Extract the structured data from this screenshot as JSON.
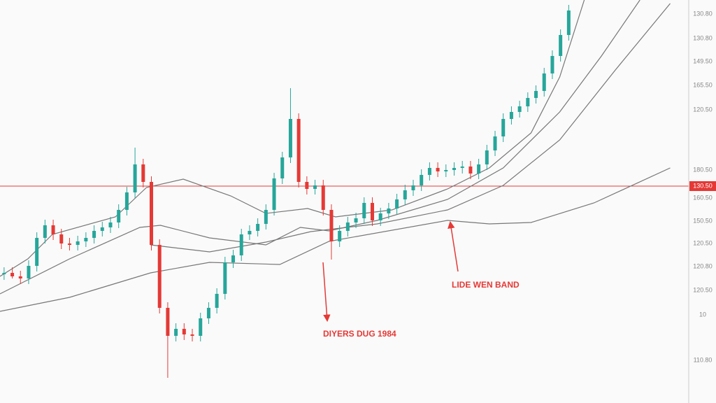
{
  "chart_data": {
    "type": "candlestick",
    "up_color": "#26a69a",
    "down_color": "#e53935",
    "xlim": [
      -0.5,
      87
    ],
    "ylim": [
      0,
      576
    ],
    "open": [
      184,
      186,
      181,
      178,
      196,
      236,
      254,
      241,
      228,
      226,
      231,
      236,
      246,
      251,
      258,
      276,
      301,
      341,
      316,
      226,
      136,
      96,
      106,
      98,
      96,
      121,
      136,
      156,
      201,
      211,
      241,
      246,
      256,
      276,
      321,
      351,
      406,
      316,
      306,
      311,
      276,
      231,
      246,
      258,
      264,
      286,
      261,
      271,
      278,
      291,
      304,
      311,
      326,
      336,
      331,
      333,
      336,
      338,
      328,
      341,
      361,
      381,
      406,
      416,
      424,
      436,
      446,
      471,
      496,
      526
    ],
    "high": [
      194,
      194,
      189,
      204,
      244,
      262,
      262,
      249,
      236,
      239,
      244,
      254,
      259,
      266,
      284,
      309,
      365,
      349,
      324,
      234,
      144,
      114,
      114,
      106,
      129,
      144,
      164,
      209,
      219,
      249,
      254,
      264,
      284,
      329,
      359,
      450,
      414,
      324,
      319,
      319,
      284,
      254,
      266,
      272,
      294,
      294,
      279,
      286,
      299,
      312,
      319,
      334,
      344,
      344,
      341,
      344,
      346,
      346,
      349,
      369,
      389,
      414,
      424,
      432,
      444,
      454,
      479,
      504,
      534,
      569
    ],
    "low": [
      176,
      178,
      170,
      170,
      188,
      228,
      233,
      220,
      218,
      218,
      223,
      228,
      238,
      243,
      250,
      268,
      293,
      308,
      218,
      128,
      36,
      88,
      90,
      88,
      88,
      113,
      128,
      148,
      193,
      203,
      233,
      238,
      248,
      268,
      313,
      343,
      308,
      298,
      298,
      268,
      205,
      223,
      238,
      250,
      256,
      253,
      253,
      263,
      270,
      283,
      296,
      303,
      318,
      323,
      323,
      325,
      328,
      320,
      320,
      333,
      353,
      373,
      398,
      408,
      416,
      428,
      438,
      463,
      488,
      518
    ],
    "close": [
      186,
      181,
      178,
      196,
      236,
      254,
      241,
      228,
      226,
      231,
      236,
      246,
      251,
      258,
      276,
      301,
      341,
      316,
      226,
      136,
      96,
      106,
      98,
      96,
      121,
      136,
      156,
      201,
      211,
      241,
      246,
      256,
      276,
      321,
      351,
      406,
      316,
      306,
      311,
      276,
      231,
      246,
      258,
      264,
      286,
      261,
      271,
      278,
      291,
      304,
      311,
      326,
      336,
      331,
      333,
      336,
      338,
      328,
      341,
      361,
      381,
      406,
      416,
      424,
      436,
      446,
      471,
      496,
      526,
      561
    ],
    "bands": [
      {
        "color": "#777777",
        "x": [
          -0.5,
          2.9,
          5.9,
          13.6,
          17.4,
          21.9,
          27.7,
          32,
          37.1,
          40.5,
          47.4,
          54.2,
          59.3,
          64.4,
          67.9,
          70.9
        ],
        "values": [
          181,
          206,
          241,
          266,
          308,
          320,
          296,
          271,
          278,
          266,
          276,
          306,
          336,
          386,
          466,
          576
        ]
      },
      {
        "color": "#777777",
        "x": [
          -0.5,
          8,
          16.6,
          19.1,
          25.1,
          32,
          36.2,
          39.7,
          45.6,
          54.2,
          61,
          67.9,
          73,
          77.7
        ],
        "values": [
          156,
          206,
          251,
          254,
          236,
          226,
          251,
          246,
          261,
          291,
          336,
          416,
          496,
          576
        ]
      },
      {
        "color": "#777777",
        "x": [
          17.9,
          25.1,
          32,
          37.5,
          45.6,
          54.2,
          61,
          67.9,
          74.7,
          81.4
        ],
        "values": [
          226,
          216,
          230,
          245,
          256,
          276,
          311,
          376,
          476,
          571
        ]
      },
      {
        "color": "#777777",
        "x": [
          -0.5,
          8,
          17.9,
          25.1,
          33.7,
          39.7,
          54.2,
          59.3,
          64.4,
          72.1,
          81.4
        ],
        "values": [
          131,
          151,
          186,
          201,
          198,
          231,
          261,
          256,
          258,
          286,
          336
        ]
      }
    ],
    "price_line": {
      "label": "130.50",
      "color": "#e53935"
    },
    "axis_labels": [
      "130.80",
      "130.80",
      "149.50",
      "165.50",
      "120.50",
      "180.50",
      "160.50",
      "150.50",
      "120.50",
      "120.80",
      "120.50",
      "10",
      "110.80"
    ],
    "annotations": [
      {
        "text": "LIDE WEN BAND"
      },
      {
        "text": "DIYERS DUG 1984"
      }
    ]
  }
}
